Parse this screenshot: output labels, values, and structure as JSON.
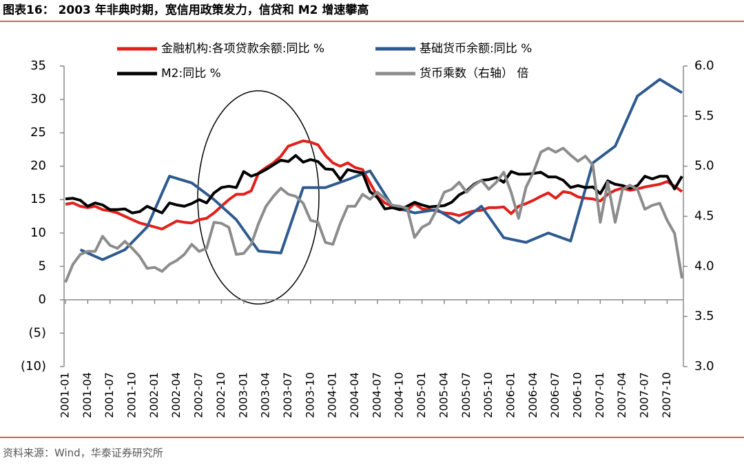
{
  "chart_data": {
    "type": "line",
    "title": "图表16： 2003 年非典时期，宽信用政策发力，信贷和 M2 增速攀高",
    "source": "资料来源：Wind，华泰证券研究所",
    "xlim": [
      "2001-01",
      "2007-12"
    ],
    "xticks": [
      "2001-01",
      "2001-04",
      "2001-07",
      "2001-10",
      "2002-01",
      "2002-04",
      "2002-07",
      "2002-10",
      "2003-01",
      "2003-04",
      "2003-07",
      "2003-10",
      "2004-01",
      "2004-04",
      "2004-07",
      "2004-10",
      "2005-01",
      "2005-04",
      "2005-07",
      "2005-10",
      "2006-01",
      "2006-04",
      "2006-07",
      "2006-10",
      "2007-01",
      "2007-04",
      "2007-07",
      "2007-10"
    ],
    "x": [
      "2001-01",
      "2001-02",
      "2001-03",
      "2001-04",
      "2001-05",
      "2001-06",
      "2001-07",
      "2001-08",
      "2001-09",
      "2001-10",
      "2001-11",
      "2001-12",
      "2002-01",
      "2002-02",
      "2002-03",
      "2002-04",
      "2002-05",
      "2002-06",
      "2002-07",
      "2002-08",
      "2002-09",
      "2002-10",
      "2002-11",
      "2002-12",
      "2003-01",
      "2003-02",
      "2003-03",
      "2003-04",
      "2003-05",
      "2003-06",
      "2003-07",
      "2003-08",
      "2003-09",
      "2003-10",
      "2003-11",
      "2003-12",
      "2004-01",
      "2004-02",
      "2004-03",
      "2004-04",
      "2004-05",
      "2004-06",
      "2004-07",
      "2004-08",
      "2004-09",
      "2004-10",
      "2004-11",
      "2004-12",
      "2005-01",
      "2005-02",
      "2005-03",
      "2005-04",
      "2005-05",
      "2005-06",
      "2005-07",
      "2005-08",
      "2005-09",
      "2005-10",
      "2005-11",
      "2005-12",
      "2006-01",
      "2006-02",
      "2006-03",
      "2006-04",
      "2006-05",
      "2006-06",
      "2006-07",
      "2006-08",
      "2006-09",
      "2006-10",
      "2006-11",
      "2006-12",
      "2007-01",
      "2007-02",
      "2007-03",
      "2007-04",
      "2007-05",
      "2007-06",
      "2007-07",
      "2007-08",
      "2007-09",
      "2007-10",
      "2007-11",
      "2007-12"
    ],
    "ylim": [
      -10,
      35
    ],
    "yticks": [
      35,
      30,
      25,
      20,
      15,
      10,
      5,
      0,
      {
        "value": -5,
        "label": "(5)"
      },
      {
        "value": -10,
        "label": "(10)"
      }
    ],
    "y2lim": [
      3,
      6
    ],
    "y2ticks": [
      {
        "value": 6,
        "label": "6.0"
      },
      {
        "value": 5.5,
        "label": "5.5"
      },
      {
        "value": 5,
        "label": "5.0"
      },
      {
        "value": 4.5,
        "label": "4.5"
      },
      {
        "value": 4,
        "label": "4.0"
      },
      {
        "value": 3.5,
        "label": "3.5"
      },
      {
        "value": 3,
        "label": "3.0"
      }
    ],
    "series": [
      {
        "name": "金融机构:各项贷款余额:同比 %",
        "color": "#e0201b",
        "values": [
          14.3,
          14.5,
          14.0,
          13.8,
          14.0,
          13.5,
          13.3,
          13.0,
          12.5,
          12.0,
          11.5,
          11.2,
          10.9,
          10.6,
          11.2,
          11.8,
          11.6,
          11.5,
          12.0,
          12.2,
          13.0,
          14.0,
          15.0,
          15.8,
          15.8,
          16.3,
          19.0,
          19.8,
          20.5,
          21.5,
          23.0,
          23.4,
          23.8,
          23.6,
          23.2,
          21.6,
          20.5,
          20.0,
          20.5,
          19.8,
          19.5,
          17.5,
          15.5,
          14.5,
          14.0,
          13.5,
          13.4,
          14.4,
          13.6,
          13.5,
          13.3,
          13.0,
          12.9,
          12.6,
          13.0,
          13.3,
          13.4,
          13.8,
          13.8,
          13.9,
          12.9,
          14.0,
          14.4,
          14.9,
          15.5,
          16.0,
          15.2,
          16.2,
          16.0,
          15.4,
          15.2,
          15.1,
          14.8,
          15.8,
          16.4,
          16.7,
          16.4,
          16.6,
          16.9,
          17.1,
          17.3,
          17.7,
          17.0,
          16.2
        ]
      },
      {
        "name": "基础货币余额:同比 %",
        "color": "#2e5a8f",
        "x": [
          "2001-03",
          "2001-06",
          "2001-09",
          "2001-12",
          "2002-03",
          "2002-06",
          "2002-09",
          "2002-12",
          "2003-03",
          "2003-06",
          "2003-09",
          "2003-12",
          "2004-03",
          "2004-06",
          "2004-09",
          "2004-12",
          "2005-03",
          "2005-06",
          "2005-09",
          "2005-12",
          "2006-03",
          "2006-06",
          "2006-09",
          "2006-12",
          "2007-03",
          "2007-06",
          "2007-09",
          "2007-12"
        ],
        "values": [
          7.5,
          6.0,
          7.5,
          10.9,
          18.5,
          17.5,
          15.0,
          12.0,
          7.3,
          7.0,
          16.8,
          16.8,
          18.0,
          19.3,
          14.0,
          13.0,
          13.5,
          11.5,
          14.0,
          9.3,
          8.6,
          10.0,
          8.8,
          20.5,
          23.0,
          30.5,
          33.0,
          31.0
        ]
      },
      {
        "name": "M2:同比 %",
        "color": "#000000",
        "values": [
          15.1,
          15.2,
          14.9,
          14.0,
          14.5,
          14.2,
          13.5,
          13.5,
          13.6,
          13.0,
          13.2,
          14.0,
          13.5,
          13.0,
          14.5,
          14.2,
          14.0,
          14.4,
          15.0,
          14.5,
          16.0,
          16.8,
          17.0,
          16.8,
          19.2,
          18.5,
          18.9,
          19.5,
          20.2,
          20.9,
          20.7,
          21.6,
          20.6,
          21.0,
          20.7,
          19.6,
          19.5,
          18.0,
          19.5,
          19.2,
          19.0,
          16.2,
          15.3,
          13.6,
          13.8,
          13.5,
          14.0,
          14.6,
          14.2,
          13.9,
          14.0,
          14.1,
          14.6,
          15.7,
          16.3,
          17.3,
          17.9,
          18.0,
          18.3,
          17.6,
          19.2,
          18.8,
          18.8,
          18.9,
          19.1,
          18.4,
          18.4,
          17.9,
          16.8,
          17.1,
          16.8,
          16.9,
          15.9,
          17.8,
          17.3,
          17.1,
          16.7,
          17.1,
          18.5,
          18.1,
          18.5,
          18.5,
          16.6,
          18.5
        ]
      },
      {
        "name": "货币乘数（右轴） 倍",
        "color": "#8c8c8c",
        "axis": "y2",
        "values": [
          3.84,
          4.02,
          4.12,
          4.15,
          4.15,
          4.3,
          4.21,
          4.18,
          4.25,
          4.18,
          4.1,
          3.98,
          3.99,
          3.95,
          4.02,
          4.06,
          4.12,
          4.22,
          4.15,
          4.18,
          4.44,
          4.43,
          4.39,
          4.12,
          4.13,
          4.22,
          4.43,
          4.6,
          4.7,
          4.78,
          4.72,
          4.7,
          4.63,
          4.46,
          4.44,
          4.24,
          4.22,
          4.43,
          4.6,
          4.6,
          4.72,
          4.67,
          4.74,
          4.68,
          4.61,
          4.6,
          4.58,
          4.29,
          4.39,
          4.43,
          4.57,
          4.74,
          4.77,
          4.84,
          4.74,
          4.81,
          4.86,
          4.77,
          4.84,
          4.94,
          4.74,
          4.48,
          4.79,
          4.94,
          5.14,
          5.18,
          5.14,
          5.18,
          5.11,
          5.05,
          5.1,
          5.01,
          4.44,
          4.84,
          4.44,
          4.77,
          4.81,
          4.77,
          4.57,
          4.61,
          4.63,
          4.46,
          4.33,
          3.88
        ]
      }
    ]
  }
}
